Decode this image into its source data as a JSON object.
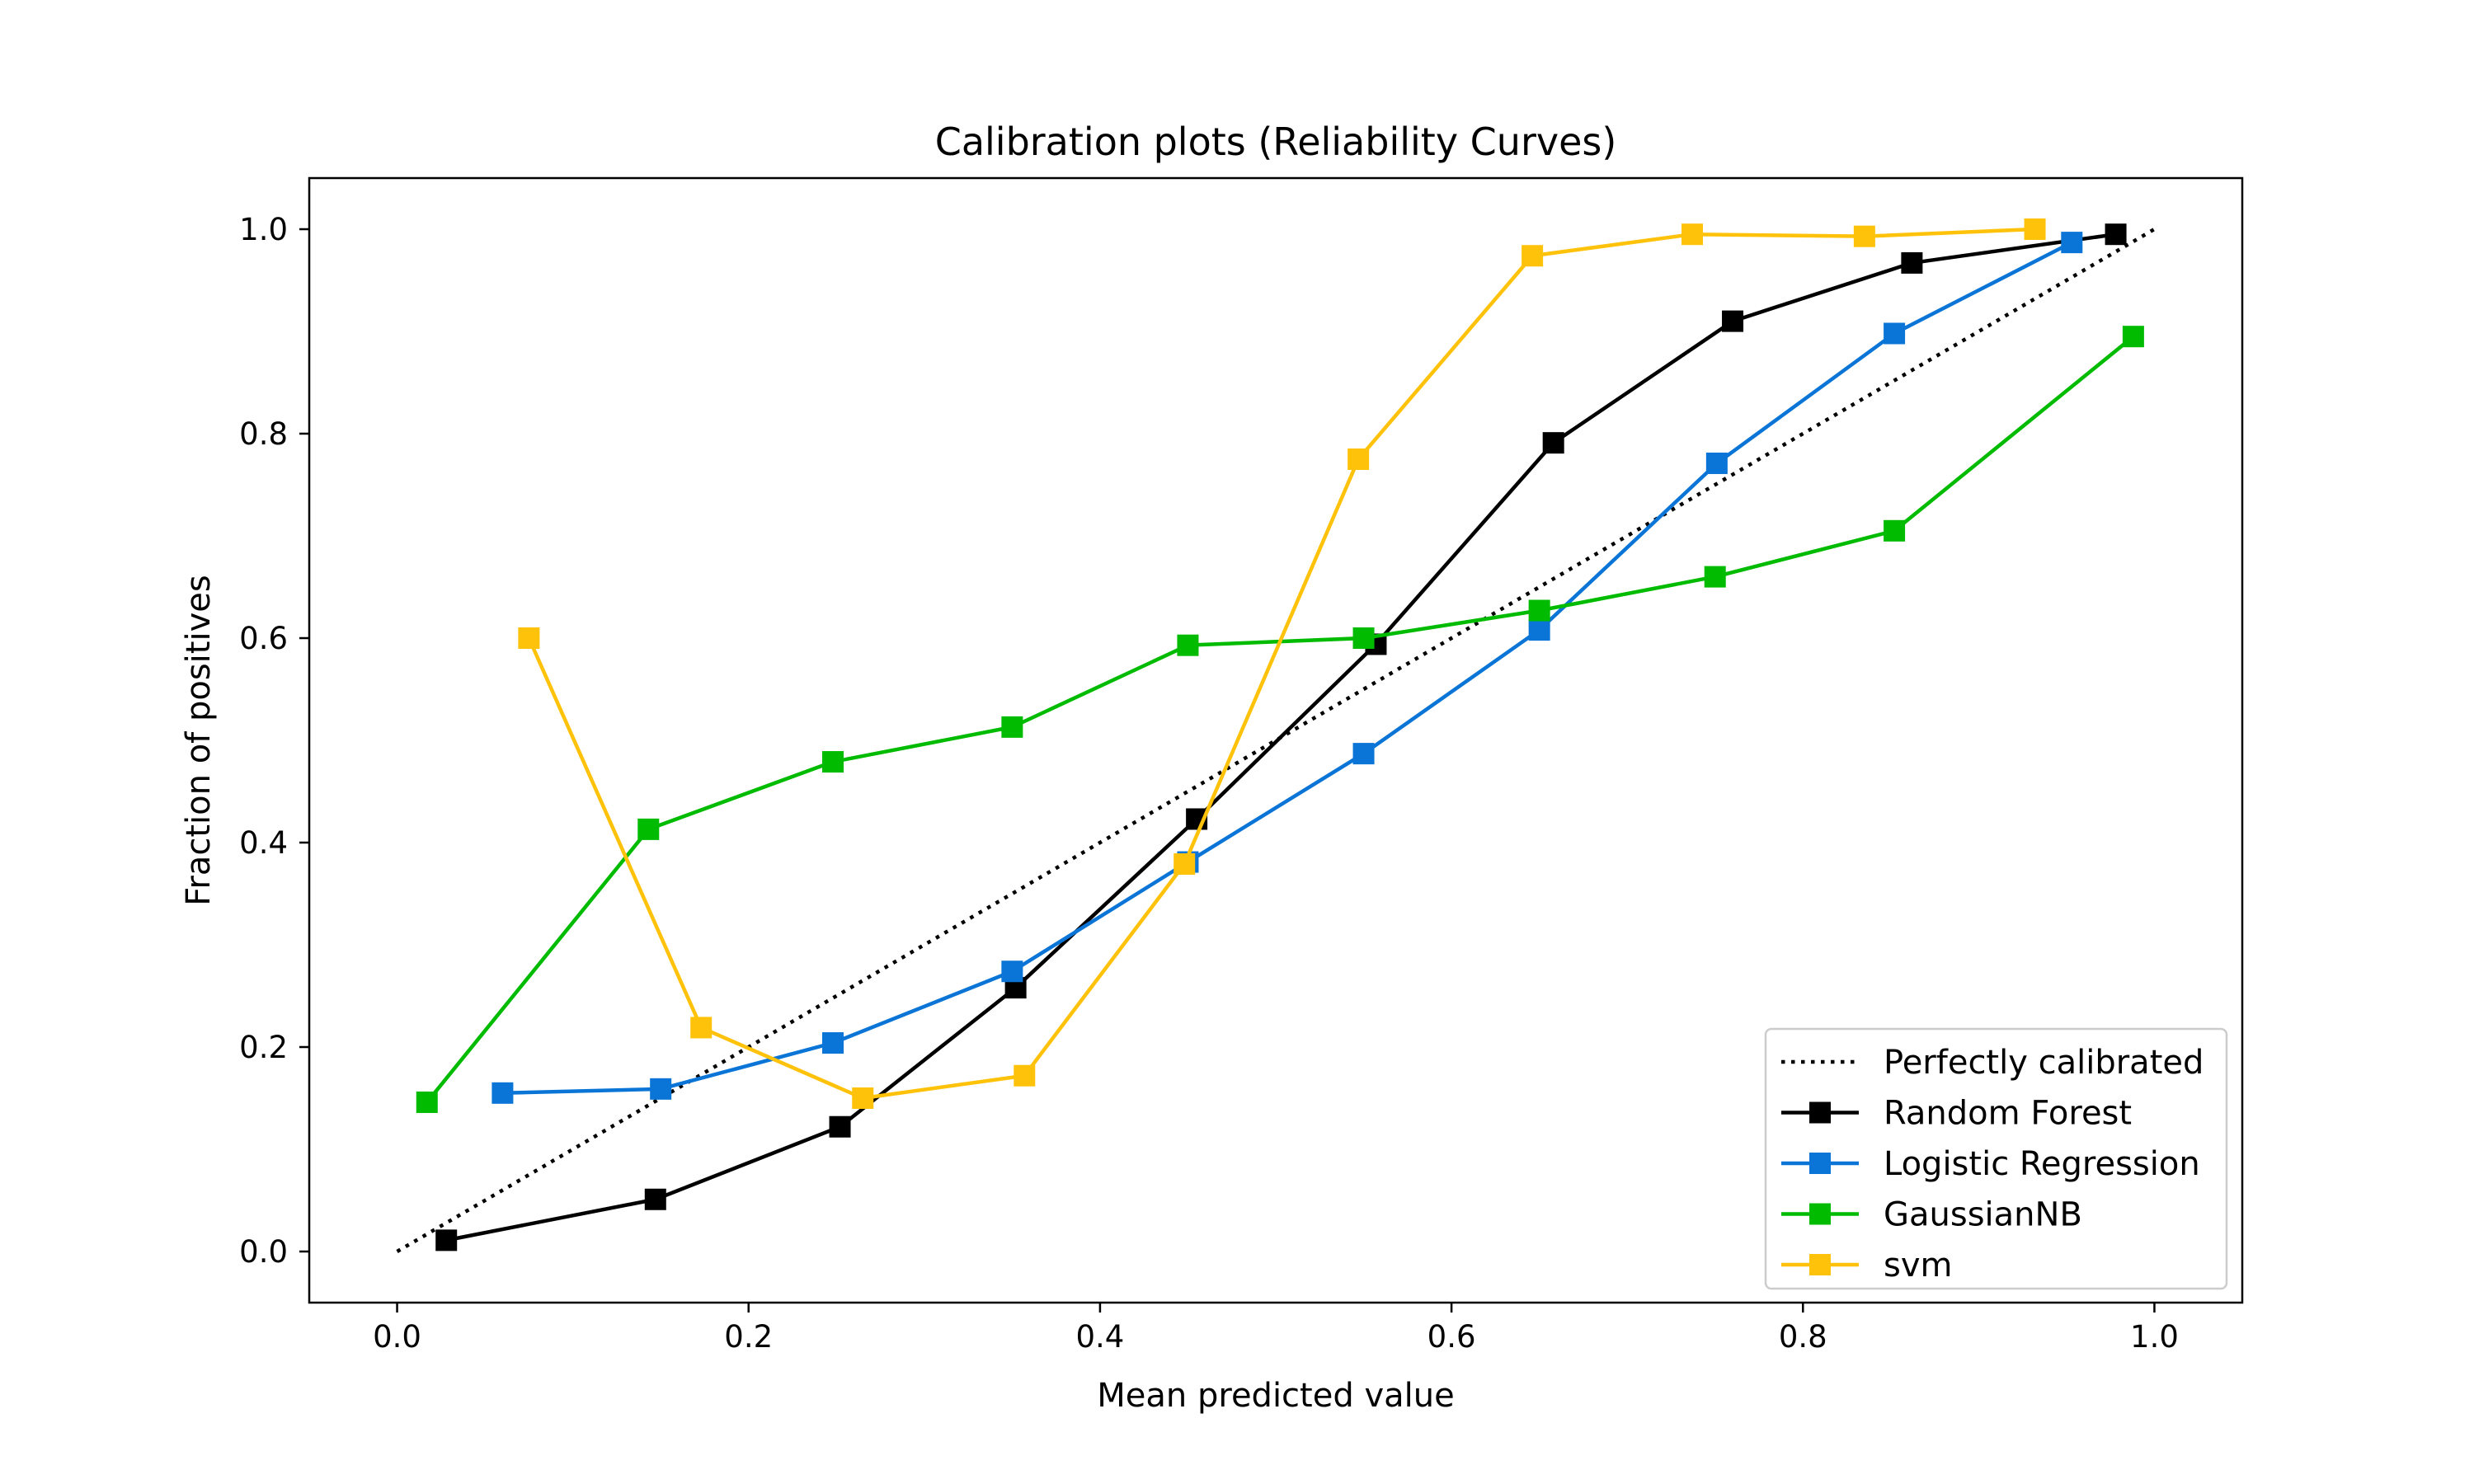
{
  "chart_data": {
    "type": "line",
    "title": "Calibration plots (Reliability Curves)",
    "xlabel": "Mean predicted value",
    "ylabel": "Fraction of positives",
    "xlim": [
      -0.05,
      1.05
    ],
    "ylim": [
      -0.05,
      1.05
    ],
    "xticks": [
      "0.0",
      "0.2",
      "0.4",
      "0.6",
      "0.8",
      "1.0"
    ],
    "yticks": [
      "0.0",
      "0.2",
      "0.4",
      "0.6",
      "0.8",
      "1.0"
    ],
    "grid": false,
    "legend_position": "lower-right",
    "reference": {
      "name": "Perfectly calibrated",
      "style": "dotted",
      "color": "#000000",
      "x": [
        0,
        1
      ],
      "y": [
        0,
        1
      ]
    },
    "series": [
      {
        "name": "Random Forest",
        "color": "#000000",
        "marker": "square",
        "x": [
          0.028,
          0.147,
          0.252,
          0.352,
          0.455,
          0.557,
          0.658,
          0.76,
          0.862,
          0.978
        ],
        "y": [
          0.011,
          0.051,
          0.122,
          0.258,
          0.423,
          0.594,
          0.791,
          0.91,
          0.967,
          0.995
        ]
      },
      {
        "name": "Logistic Regression",
        "color": "#0a75d6",
        "marker": "square",
        "x": [
          0.06,
          0.15,
          0.248,
          0.35,
          0.45,
          0.55,
          0.65,
          0.751,
          0.852,
          0.953
        ],
        "y": [
          0.155,
          0.159,
          0.204,
          0.274,
          0.381,
          0.487,
          0.608,
          0.771,
          0.898,
          0.987
        ]
      },
      {
        "name": "GaussianNB",
        "color": "#00bb00",
        "marker": "square",
        "x": [
          0.017,
          0.143,
          0.248,
          0.35,
          0.45,
          0.55,
          0.65,
          0.75,
          0.852,
          0.988
        ],
        "y": [
          0.146,
          0.413,
          0.479,
          0.513,
          0.593,
          0.6,
          0.627,
          0.66,
          0.705,
          0.895
        ]
      },
      {
        "name": "svm",
        "color": "#ffc20a",
        "marker": "square",
        "x": [
          0.075,
          0.173,
          0.265,
          0.357,
          0.448,
          0.547,
          0.646,
          0.737,
          0.835,
          0.932
        ],
        "y": [
          0.6,
          0.219,
          0.15,
          0.172,
          0.379,
          0.775,
          0.974,
          0.995,
          0.993,
          1.0
        ]
      }
    ]
  }
}
